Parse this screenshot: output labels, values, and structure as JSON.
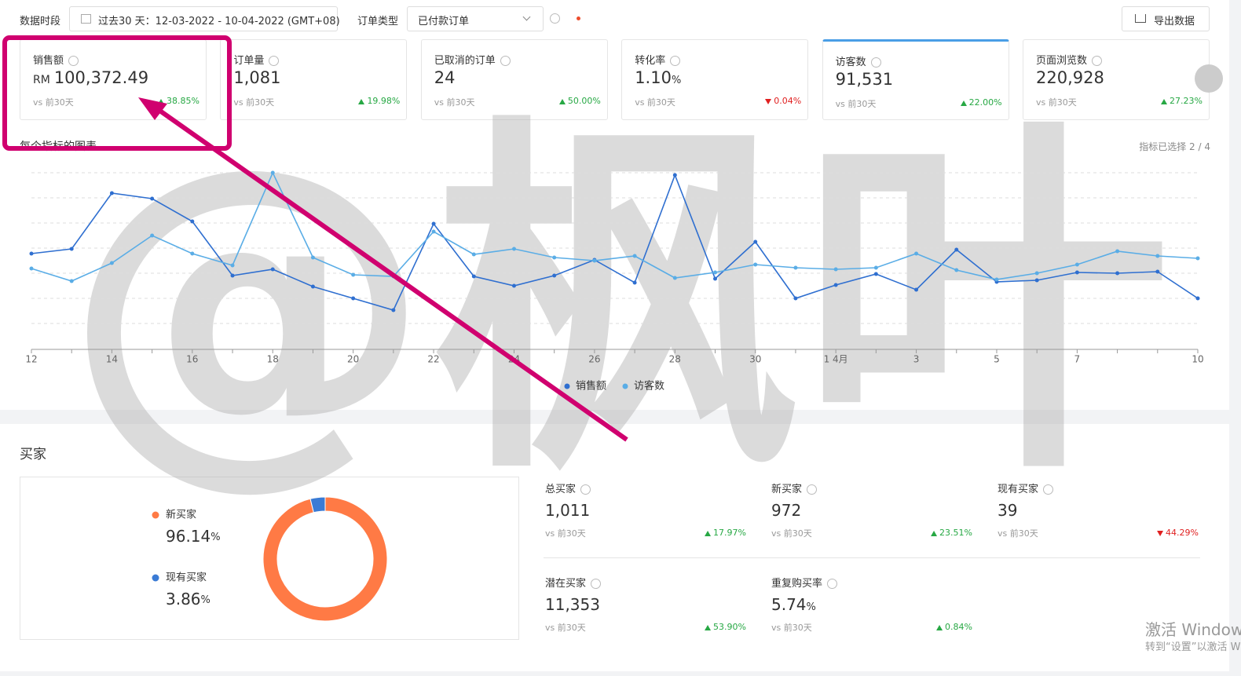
{
  "filters": {
    "period_label": "数据时段",
    "period": "过去30 天：12-03-2022 - 10-04-2022 (GMT+08)",
    "order_type_label": "订单类型",
    "order_type": "已付款订单",
    "export": "导出数据"
  },
  "metrics": [
    {
      "label": "销售额",
      "prefix": "RM",
      "value": "100,372.49",
      "compare": "vs 前30天",
      "change": "38.85%",
      "direction": "up"
    },
    {
      "label": "订单量",
      "value": "1,081",
      "compare": "vs 前30天",
      "change": "19.98%",
      "direction": "up"
    },
    {
      "label": "已取消的订单",
      "value": "24",
      "compare": "vs 前30天",
      "change": "50.00%",
      "direction": "up"
    },
    {
      "label": "转化率",
      "value": "1.10",
      "unit": "%",
      "compare": "vs 前30天",
      "change": "0.04%",
      "direction": "down"
    },
    {
      "label": "访客数",
      "value": "91,531",
      "compare": "vs 前30天",
      "change": "22.00%",
      "direction": "up",
      "selected": true
    },
    {
      "label": "页面浏览数",
      "value": "220,928",
      "compare": "vs 前30天",
      "change": "27.23%",
      "direction": "up"
    }
  ],
  "chart_section": {
    "title": "每个指标的图表",
    "selected": "指标已选择 2 / 4"
  },
  "chart_data": [
    {
      "type": "line",
      "categories": [
        "12",
        null,
        "14",
        null,
        "16",
        null,
        "18",
        null,
        "20",
        null,
        "22",
        null,
        "24",
        null,
        "26",
        null,
        "28",
        null,
        "30",
        null,
        "1 4月",
        null,
        "3",
        null,
        "5",
        null,
        "7",
        null,
        null,
        "10"
      ],
      "series": [
        {
          "name": "销售额",
          "color": "#2f6fd0",
          "values": [
            122,
            128,
            199,
            192,
            163,
            94,
            102,
            80,
            65,
            50,
            160,
            93,
            81,
            94,
            114,
            85,
            222,
            90,
            137,
            65,
            82,
            96,
            76,
            127,
            86,
            88,
            98,
            97,
            99,
            65
          ]
        },
        {
          "name": "访客数",
          "color": "#5aade6",
          "values": [
            103,
            87,
            110,
            145,
            122,
            107,
            225,
            117,
            95,
            93,
            150,
            121,
            128,
            117,
            113,
            119,
            91,
            98,
            108,
            104,
            102,
            104,
            122,
            101,
            89,
            97,
            108,
            125,
            119,
            116
          ]
        }
      ]
    },
    {
      "type": "pie",
      "unit": "%",
      "categories": [
        "新买家",
        "现有买家"
      ],
      "values": [
        96.14,
        3.86
      ],
      "colors": [
        "#ff7a45",
        "#3a7bd5"
      ]
    }
  ],
  "buyers": {
    "title": "买家",
    "stats": [
      {
        "label": "总买家",
        "value": "1,011",
        "compare": "vs 前30天",
        "change": "17.97%",
        "direction": "up"
      },
      {
        "label": "新买家",
        "value": "972",
        "compare": "vs 前30天",
        "change": "23.51%",
        "direction": "up"
      },
      {
        "label": "现有买家",
        "value": "39",
        "compare": "vs 前30天",
        "change": "44.29%",
        "direction": "down"
      },
      {
        "label": "潜在买家",
        "value": "11,353",
        "compare": "vs 前30天",
        "change": "53.90%",
        "direction": "up"
      },
      {
        "label": "重复购买率",
        "value": "5.74",
        "unit": "%",
        "compare": "vs 前30天",
        "change": "0.84%",
        "direction": "up"
      }
    ]
  },
  "watermark": "@枫叶",
  "windows": {
    "line1": "激活 Windows",
    "line2": "转到“设置”以激活 Windows。"
  }
}
